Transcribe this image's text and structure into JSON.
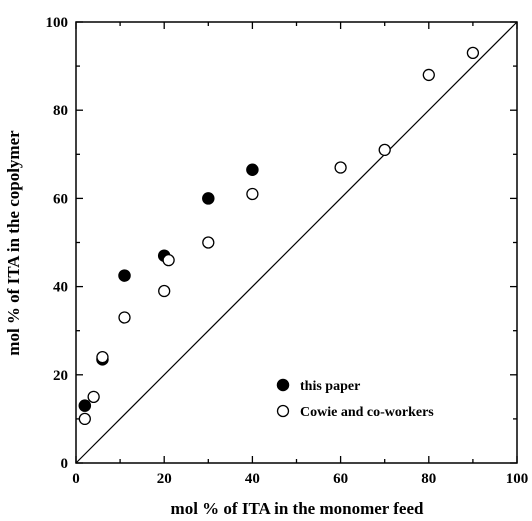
{
  "chart_data": {
    "type": "scatter",
    "title": "",
    "xlabel": "mol % of ITA in the monomer feed",
    "ylabel": "mol % of ITA in the copolymer",
    "xlim": [
      0,
      100
    ],
    "ylim": [
      0,
      100
    ],
    "xticks": [
      "0",
      "20",
      "40",
      "60",
      "80",
      "100"
    ],
    "yticks": [
      "0",
      "20",
      "40",
      "60",
      "80",
      "100"
    ],
    "grid": false,
    "legend_position": "bottom-right",
    "reference_line": {
      "from": [
        0,
        0
      ],
      "to": [
        100,
        100
      ]
    },
    "series": [
      {
        "name": "this paper",
        "marker": "filled-circle",
        "color": "#000000",
        "x": [
          2,
          6,
          11,
          20,
          30,
          40
        ],
        "y": [
          13,
          23.5,
          42.5,
          47,
          60,
          66.5
        ]
      },
      {
        "name": "Cowie and co-workers",
        "marker": "open-circle",
        "color": "#000000",
        "x": [
          2,
          4,
          6,
          11,
          20,
          21,
          30,
          40,
          60,
          70,
          80,
          90
        ],
        "y": [
          10,
          15,
          24,
          33,
          39,
          46,
          50,
          61,
          67,
          71,
          88,
          93
        ]
      }
    ]
  }
}
